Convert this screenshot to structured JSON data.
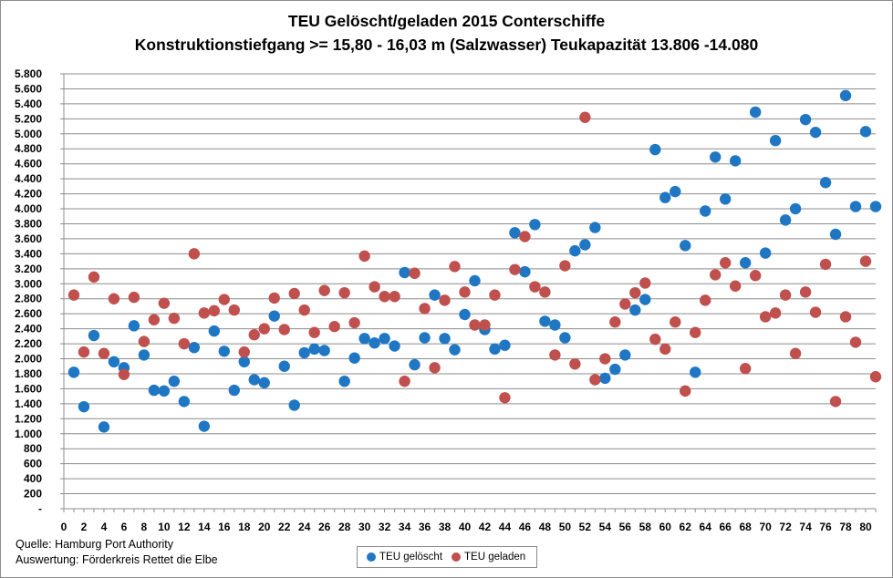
{
  "chart_data": {
    "type": "scatter",
    "title": "TEU Gelöscht/geladen  2015 Conterschiffe",
    "subtitle": "Konstruktionstiefgang >= 15,80 - 16,03 m (Salzwasser)  Teukapazität   13.806 -14.080",
    "xlabel": "",
    "ylabel": "",
    "xlim": [
      0,
      81
    ],
    "ylim": [
      0,
      5800
    ],
    "x_ticks": [
      "0",
      "2",
      "4",
      "6",
      "8",
      "10",
      "12",
      "14",
      "16",
      "18",
      "20",
      "22",
      "24",
      "26",
      "28",
      "30",
      "32",
      "34",
      "36",
      "38",
      "40",
      "42",
      "44",
      "46",
      "48",
      "50",
      "52",
      "54",
      "56",
      "58",
      "60",
      "62",
      "64",
      "66",
      "68",
      "70",
      "72",
      "74",
      "76",
      "78",
      "80"
    ],
    "y_ticks": [
      "-",
      "200",
      "400",
      "600",
      "800",
      "1.000",
      "1.200",
      "1.400",
      "1.600",
      "1.800",
      "2.000",
      "2.200",
      "2.400",
      "2.600",
      "2.800",
      "3.000",
      "3.200",
      "3.400",
      "3.600",
      "3.800",
      "4.000",
      "4.200",
      "4.400",
      "4.600",
      "4.800",
      "5.000",
      "5.200",
      "5.400",
      "5.600",
      "5.800"
    ],
    "grid": true,
    "legend_position": "bottom-center",
    "series": [
      {
        "name": "TEU gelöscht",
        "color": "#1f77c4",
        "points": [
          [
            1,
            1820
          ],
          [
            2,
            1360
          ],
          [
            3,
            2310
          ],
          [
            4,
            1090
          ],
          [
            5,
            1960
          ],
          [
            6,
            1880
          ],
          [
            7,
            2440
          ],
          [
            8,
            2050
          ],
          [
            9,
            1580
          ],
          [
            10,
            1570
          ],
          [
            11,
            1700
          ],
          [
            12,
            1430
          ],
          [
            13,
            2150
          ],
          [
            14,
            1100
          ],
          [
            15,
            2370
          ],
          [
            16,
            2100
          ],
          [
            17,
            1580
          ],
          [
            18,
            1960
          ],
          [
            19,
            1720
          ],
          [
            20,
            1680
          ],
          [
            21,
            2570
          ],
          [
            22,
            1900
          ],
          [
            23,
            1380
          ],
          [
            24,
            2080
          ],
          [
            25,
            2130
          ],
          [
            26,
            2110
          ],
          [
            28,
            1700
          ],
          [
            29,
            2010
          ],
          [
            30,
            2270
          ],
          [
            31,
            2210
          ],
          [
            32,
            2270
          ],
          [
            33,
            2170
          ],
          [
            34,
            3150
          ],
          [
            35,
            1920
          ],
          [
            36,
            2280
          ],
          [
            37,
            2850
          ],
          [
            38,
            2270
          ],
          [
            39,
            2120
          ],
          [
            40,
            2590
          ],
          [
            41,
            3040
          ],
          [
            42,
            2390
          ],
          [
            43,
            2130
          ],
          [
            44,
            2180
          ],
          [
            45,
            3680
          ],
          [
            46,
            3160
          ],
          [
            47,
            3790
          ],
          [
            48,
            2500
          ],
          [
            49,
            2450
          ],
          [
            50,
            2280
          ],
          [
            51,
            3440
          ],
          [
            52,
            3520
          ],
          [
            53,
            3750
          ],
          [
            54,
            1740
          ],
          [
            55,
            1860
          ],
          [
            56,
            2050
          ],
          [
            57,
            2650
          ],
          [
            58,
            2790
          ],
          [
            59,
            4790
          ],
          [
            60,
            4150
          ],
          [
            61,
            4230
          ],
          [
            62,
            3510
          ],
          [
            63,
            1820
          ],
          [
            64,
            3970
          ],
          [
            65,
            4690
          ],
          [
            66,
            4130
          ],
          [
            67,
            4640
          ],
          [
            68,
            3280
          ],
          [
            69,
            5290
          ],
          [
            70,
            3410
          ],
          [
            71,
            4910
          ],
          [
            72,
            3850
          ],
          [
            73,
            4000
          ],
          [
            74,
            5190
          ],
          [
            75,
            5020
          ],
          [
            76,
            4350
          ],
          [
            77,
            3660
          ],
          [
            78,
            5510
          ],
          [
            79,
            4030
          ],
          [
            80,
            5030
          ],
          [
            81,
            4030
          ]
        ]
      },
      {
        "name": "TEU geladen",
        "color": "#c0504d",
        "points": [
          [
            1,
            2850
          ],
          [
            2,
            2090
          ],
          [
            3,
            3090
          ],
          [
            4,
            2070
          ],
          [
            5,
            2800
          ],
          [
            6,
            1790
          ],
          [
            7,
            2820
          ],
          [
            8,
            2230
          ],
          [
            9,
            2520
          ],
          [
            10,
            2740
          ],
          [
            11,
            2540
          ],
          [
            12,
            2200
          ],
          [
            13,
            3400
          ],
          [
            14,
            2610
          ],
          [
            15,
            2640
          ],
          [
            16,
            2790
          ],
          [
            17,
            2650
          ],
          [
            18,
            2090
          ],
          [
            19,
            2320
          ],
          [
            20,
            2400
          ],
          [
            21,
            2810
          ],
          [
            22,
            2390
          ],
          [
            23,
            2870
          ],
          [
            24,
            2650
          ],
          [
            25,
            2350
          ],
          [
            26,
            2910
          ],
          [
            27,
            2430
          ],
          [
            28,
            2880
          ],
          [
            29,
            2480
          ],
          [
            30,
            3370
          ],
          [
            31,
            2960
          ],
          [
            32,
            2830
          ],
          [
            33,
            2830
          ],
          [
            34,
            1700
          ],
          [
            35,
            3140
          ],
          [
            36,
            2670
          ],
          [
            37,
            1880
          ],
          [
            38,
            2780
          ],
          [
            39,
            3230
          ],
          [
            40,
            2890
          ],
          [
            41,
            2450
          ],
          [
            42,
            2450
          ],
          [
            43,
            2850
          ],
          [
            44,
            1480
          ],
          [
            45,
            3190
          ],
          [
            46,
            3630
          ],
          [
            47,
            2960
          ],
          [
            48,
            2890
          ],
          [
            49,
            2050
          ],
          [
            50,
            3240
          ],
          [
            51,
            1930
          ],
          [
            52,
            5220
          ],
          [
            53,
            1720
          ],
          [
            54,
            2000
          ],
          [
            55,
            2490
          ],
          [
            56,
            2730
          ],
          [
            57,
            2880
          ],
          [
            58,
            3010
          ],
          [
            59,
            2260
          ],
          [
            60,
            2130
          ],
          [
            61,
            2490
          ],
          [
            62,
            1570
          ],
          [
            63,
            2350
          ],
          [
            64,
            2780
          ],
          [
            65,
            3120
          ],
          [
            66,
            3280
          ],
          [
            67,
            2970
          ],
          [
            68,
            1870
          ],
          [
            69,
            3110
          ],
          [
            70,
            2560
          ],
          [
            71,
            2610
          ],
          [
            72,
            2850
          ],
          [
            73,
            2070
          ],
          [
            74,
            2890
          ],
          [
            75,
            2620
          ],
          [
            76,
            3260
          ],
          [
            77,
            1430
          ],
          [
            78,
            2560
          ],
          [
            79,
            2220
          ],
          [
            80,
            3300
          ],
          [
            81,
            1760
          ]
        ]
      }
    ]
  },
  "footer": {
    "source": "Quelle: Hamburg Port Authority",
    "evaluation": "Auswertung: Förderkreis Rettet die Elbe"
  }
}
